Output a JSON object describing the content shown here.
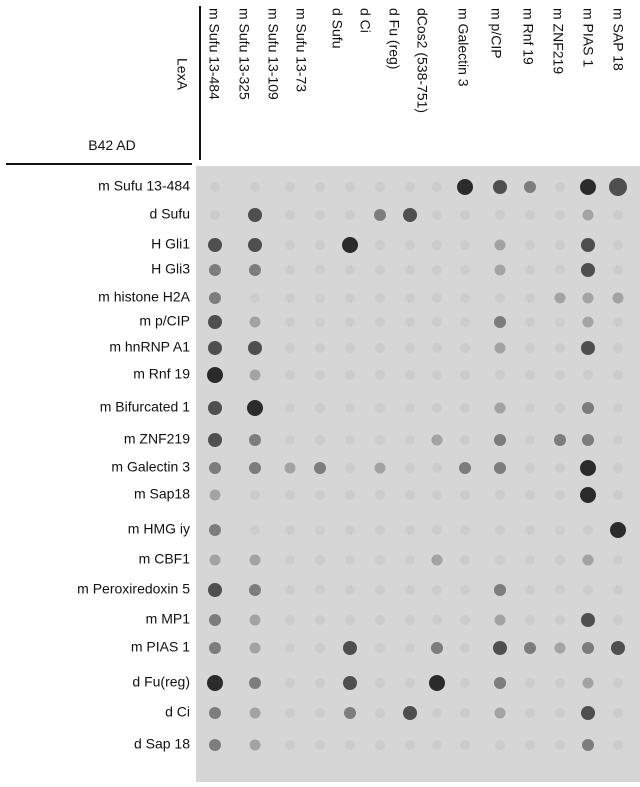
{
  "header": {
    "bait_label": "LexA",
    "prey_label": "B42 AD"
  },
  "columns": [
    "m Sufu 13-484",
    "m Sufu 13-325",
    "m Sufu 13-109",
    "m Sufu 13-73",
    "d Sufu",
    "d Ci",
    "d Fu (reg)",
    "dCos2 (538-751)",
    "m Galectin 3",
    "m p/CIP",
    "m Rnf 19",
    "m ZNF219",
    "m PIAS 1",
    "m SAP 18"
  ],
  "rows": [
    "m Sufu 13-484",
    "d Sufu",
    "H Gli1",
    "H Gli3",
    "m histone H2A",
    "m p/CIP",
    "m hnRNP A1",
    "m Rnf 19",
    "m Bifurcated 1",
    "m ZNF219",
    "m Galectin 3",
    "m Sap18",
    "m HMG iy",
    "m CBF1",
    "m Peroxiredoxin 5",
    "m MP1",
    "m PIAS 1",
    "d Fu(reg)",
    "d Ci",
    "d Sap 18"
  ]
}
